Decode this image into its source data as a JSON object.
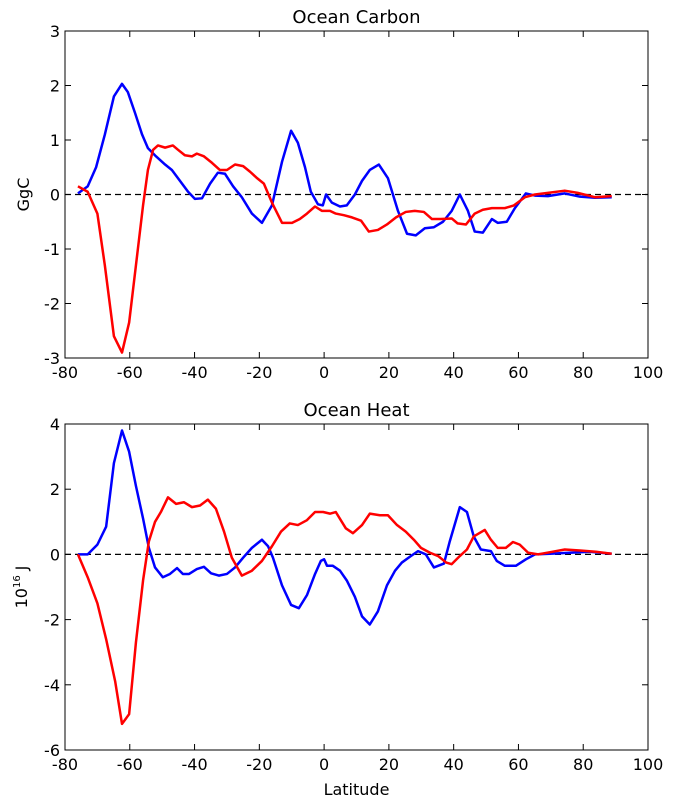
{
  "chart_data": [
    {
      "type": "line",
      "title": "Ocean Carbon",
      "ylabel": "GgC",
      "xlim": [
        -80,
        100
      ],
      "xticks": [
        -80,
        -60,
        -40,
        -20,
        0,
        20,
        40,
        60,
        80,
        100
      ],
      "ylim": [
        -3,
        3
      ],
      "yticks": [
        -3,
        -2,
        -1,
        0,
        1,
        2,
        3
      ],
      "hline": 0,
      "series": [
        {
          "color": "#0000ff",
          "x": [
            -76,
            -73,
            -70.4,
            -67.7,
            -64.9,
            -62.4,
            -60.6,
            -58.4,
            -56.2,
            -54.4,
            -51.9,
            -49.1,
            -47,
            -44.5,
            -42,
            -39.9,
            -37.7,
            -35.2,
            -32.8,
            -30.6,
            -28.1,
            -25.4,
            -22.3,
            -19.2,
            -16.1,
            -13,
            -10.2,
            -8.1,
            -5.9,
            -4.1,
            -1.9,
            -0.4,
            0.6,
            2.4,
            4.9,
            7,
            9.5,
            11.7,
            14.1,
            16.9,
            19.7,
            22.8,
            25.6,
            28.3,
            31.1,
            33.9,
            36.7,
            39.4,
            41.9,
            44.4,
            46.5,
            49,
            51.8,
            53.6,
            56.4,
            58.9,
            62.3,
            65.1,
            69.1,
            74.3,
            79,
            83.6,
            88.8
          ],
          "values": [
            0.02,
            0.15,
            0.5,
            1.1,
            1.8,
            2.03,
            1.88,
            1.5,
            1.1,
            0.85,
            0.7,
            0.55,
            0.45,
            0.25,
            0.05,
            -0.08,
            -0.07,
            0.2,
            0.4,
            0.38,
            0.15,
            -0.05,
            -0.35,
            -0.52,
            -0.2,
            0.6,
            1.17,
            0.95,
            0.5,
            0.05,
            -0.18,
            -0.2,
            0.0,
            -0.15,
            -0.22,
            -0.2,
            0.0,
            0.25,
            0.45,
            0.55,
            0.3,
            -0.3,
            -0.72,
            -0.75,
            -0.62,
            -0.6,
            -0.5,
            -0.3,
            0.0,
            -0.3,
            -0.68,
            -0.7,
            -0.45,
            -0.52,
            -0.5,
            -0.25,
            0.02,
            -0.02,
            -0.03,
            0.02,
            -0.04,
            -0.06,
            -0.05
          ]
        },
        {
          "color": "#ff0000",
          "x": [
            -76,
            -73,
            -70,
            -67.7,
            -64.9,
            -62.4,
            -60.2,
            -58.1,
            -55.9,
            -54.4,
            -52.8,
            -51.3,
            -49.1,
            -46.7,
            -45.1,
            -43,
            -40.8,
            -39.3,
            -37.1,
            -34.6,
            -32.2,
            -30,
            -27.5,
            -25,
            -22.9,
            -20.7,
            -18.6,
            -16.1,
            -13,
            -9.9,
            -7.5,
            -5.3,
            -2.8,
            -0.7,
            1.8,
            3.6,
            6.1,
            8.6,
            11.4,
            13.8,
            16.6,
            19.4,
            22.2,
            25.2,
            28,
            30.8,
            33.3,
            36,
            39.4,
            41.2,
            43.8,
            46.5,
            49,
            51.8,
            55.8,
            58.6,
            62,
            65.1,
            69.1,
            74.3,
            78.3,
            83.6,
            88.8
          ],
          "values": [
            0.15,
            0.05,
            -0.35,
            -1.3,
            -2.6,
            -2.9,
            -2.35,
            -1.3,
            -0.2,
            0.45,
            0.82,
            0.9,
            0.86,
            0.9,
            0.82,
            0.72,
            0.7,
            0.75,
            0.7,
            0.58,
            0.45,
            0.45,
            0.55,
            0.52,
            0.42,
            0.3,
            0.2,
            -0.15,
            -0.52,
            -0.52,
            -0.45,
            -0.35,
            -0.22,
            -0.3,
            -0.3,
            -0.35,
            -0.38,
            -0.42,
            -0.48,
            -0.68,
            -0.65,
            -0.55,
            -0.42,
            -0.32,
            -0.3,
            -0.32,
            -0.45,
            -0.45,
            -0.44,
            -0.53,
            -0.55,
            -0.35,
            -0.28,
            -0.25,
            -0.25,
            -0.2,
            -0.05,
            0.0,
            0.03,
            0.07,
            0.03,
            -0.05,
            -0.03
          ]
        }
      ]
    },
    {
      "type": "line",
      "title": "Ocean Heat",
      "ylabel": {
        "base": "10",
        "exponent": "16",
        "unit": "J"
      },
      "xlabel": "Latitude",
      "xlim": [
        -80,
        100
      ],
      "xticks": [
        -80,
        -60,
        -40,
        -20,
        0,
        20,
        40,
        60,
        80,
        100
      ],
      "ylim": [
        -6,
        4
      ],
      "yticks": [
        -6,
        -4,
        -2,
        0,
        2,
        4
      ],
      "hline": 0,
      "series": [
        {
          "color": "#0000ff",
          "x": [
            -76,
            -73,
            -70,
            -67.3,
            -64.9,
            -62.4,
            -60.2,
            -58.1,
            -55.9,
            -54.1,
            -52.2,
            -49.8,
            -47.6,
            -45.4,
            -43.6,
            -41.7,
            -39.3,
            -37.1,
            -34.9,
            -32.5,
            -30,
            -27.5,
            -25,
            -22.3,
            -19.2,
            -17.3,
            -15.8,
            -13,
            -10.2,
            -7.8,
            -5.3,
            -2.8,
            -1,
            0,
            0.9,
            2.7,
            4.9,
            7,
            9.5,
            11.7,
            14.1,
            16.6,
            19.4,
            21.9,
            24,
            26.8,
            29,
            31.4,
            33.9,
            37,
            38.8,
            41.9,
            44.1,
            46.2,
            48.4,
            51.5,
            53.3,
            55.8,
            59.2,
            62.3,
            65.1,
            69.7,
            75.8,
            82,
            88.8
          ],
          "values": [
            0.0,
            0.0,
            0.3,
            0.85,
            2.8,
            3.8,
            3.15,
            2.1,
            1.1,
            0.2,
            -0.4,
            -0.7,
            -0.6,
            -0.42,
            -0.6,
            -0.6,
            -0.45,
            -0.38,
            -0.58,
            -0.65,
            -0.6,
            -0.4,
            -0.1,
            0.2,
            0.45,
            0.25,
            -0.1,
            -0.95,
            -1.55,
            -1.65,
            -1.25,
            -0.6,
            -0.2,
            -0.15,
            -0.35,
            -0.35,
            -0.5,
            -0.8,
            -1.3,
            -1.9,
            -2.15,
            -1.75,
            -0.95,
            -0.5,
            -0.25,
            -0.05,
            0.1,
            0.0,
            -0.4,
            -0.28,
            0.4,
            1.45,
            1.3,
            0.55,
            0.15,
            0.1,
            -0.2,
            -0.35,
            -0.35,
            -0.15,
            0.0,
            0.02,
            0.05,
            0.08,
            0.02
          ]
        },
        {
          "color": "#ff0000",
          "x": [
            -76,
            -73,
            -70,
            -67.3,
            -64.5,
            -62.4,
            -60.2,
            -58.1,
            -55.9,
            -54.1,
            -52.2,
            -50.4,
            -48.2,
            -45.7,
            -43.3,
            -40.8,
            -38.3,
            -35.9,
            -33.4,
            -30.9,
            -28.5,
            -25.4,
            -22.3,
            -19.2,
            -16.1,
            -13.3,
            -10.6,
            -8.1,
            -5.3,
            -2.8,
            -0.3,
            1.8,
            3.6,
            6.7,
            8.9,
            11.7,
            14.1,
            17.2,
            19.7,
            22.5,
            25.2,
            27.7,
            29.9,
            32.7,
            35.2,
            37.7,
            39.4,
            41.9,
            44.1,
            46.2,
            49.6,
            51.5,
            53.6,
            56.1,
            58.3,
            60.4,
            63,
            66.1,
            70.4,
            74.3,
            79,
            83.9,
            88.8
          ],
          "values": [
            0.0,
            -0.7,
            -1.5,
            -2.6,
            -3.9,
            -5.2,
            -4.9,
            -2.7,
            -0.8,
            0.4,
            1.0,
            1.3,
            1.75,
            1.55,
            1.6,
            1.45,
            1.5,
            1.68,
            1.4,
            0.7,
            -0.1,
            -0.65,
            -0.5,
            -0.2,
            0.25,
            0.7,
            0.95,
            0.9,
            1.05,
            1.3,
            1.3,
            1.25,
            1.3,
            0.8,
            0.65,
            0.9,
            1.25,
            1.2,
            1.2,
            0.9,
            0.7,
            0.45,
            0.2,
            0.05,
            -0.05,
            -0.25,
            -0.3,
            -0.05,
            0.15,
            0.55,
            0.75,
            0.45,
            0.2,
            0.2,
            0.38,
            0.3,
            0.05,
            0.0,
            0.08,
            0.15,
            0.12,
            0.08,
            0.02
          ]
        }
      ]
    }
  ]
}
